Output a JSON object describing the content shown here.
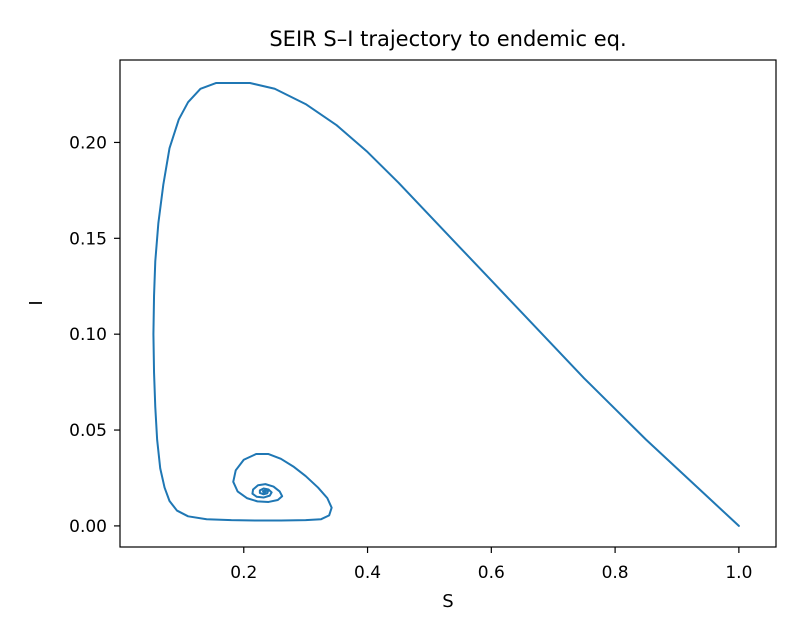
{
  "chart_data": {
    "type": "line",
    "title": "SEIR S–I trajectory to endemic eq.",
    "xlabel": "S",
    "ylabel": "I",
    "xlim": [
      0.0,
      1.06
    ],
    "ylim": [
      -0.011,
      0.243
    ],
    "grid": false,
    "legend": "none",
    "x_ticks": [
      {
        "value": 0.2,
        "label": "0.2"
      },
      {
        "value": 0.4,
        "label": "0.4"
      },
      {
        "value": 0.6,
        "label": "0.6"
      },
      {
        "value": 0.8,
        "label": "0.8"
      },
      {
        "value": 1.0,
        "label": "1.0"
      }
    ],
    "y_ticks": [
      {
        "value": 0.0,
        "label": "0.00"
      },
      {
        "value": 0.05,
        "label": "0.05"
      },
      {
        "value": 0.1,
        "label": "0.10"
      },
      {
        "value": 0.15,
        "label": "0.15"
      },
      {
        "value": 0.2,
        "label": "0.20"
      }
    ],
    "series": [
      {
        "color": "#1f77b4",
        "points": [
          [
            1.0,
            0.0
          ],
          [
            0.95,
            0.015
          ],
          [
            0.9,
            0.03
          ],
          [
            0.85,
            0.045
          ],
          [
            0.8,
            0.061
          ],
          [
            0.75,
            0.077
          ],
          [
            0.7,
            0.094
          ],
          [
            0.65,
            0.111
          ],
          [
            0.6,
            0.128
          ],
          [
            0.55,
            0.145
          ],
          [
            0.5,
            0.162
          ],
          [
            0.45,
            0.179
          ],
          [
            0.4,
            0.195
          ],
          [
            0.35,
            0.209
          ],
          [
            0.3,
            0.22
          ],
          [
            0.25,
            0.228
          ],
          [
            0.21,
            0.231
          ],
          [
            0.175,
            0.231
          ],
          [
            0.155,
            0.231
          ],
          [
            0.13,
            0.228
          ],
          [
            0.11,
            0.221
          ],
          [
            0.095,
            0.212
          ],
          [
            0.08,
            0.197
          ],
          [
            0.07,
            0.178
          ],
          [
            0.062,
            0.158
          ],
          [
            0.057,
            0.138
          ],
          [
            0.055,
            0.12
          ],
          [
            0.054,
            0.1
          ],
          [
            0.055,
            0.08
          ],
          [
            0.057,
            0.062
          ],
          [
            0.06,
            0.045
          ],
          [
            0.065,
            0.03
          ],
          [
            0.072,
            0.02
          ],
          [
            0.08,
            0.013
          ],
          [
            0.092,
            0.008
          ],
          [
            0.11,
            0.005
          ],
          [
            0.14,
            0.0035
          ],
          [
            0.18,
            0.003
          ],
          [
            0.22,
            0.0028
          ],
          [
            0.26,
            0.0028
          ],
          [
            0.3,
            0.003
          ],
          [
            0.325,
            0.0035
          ],
          [
            0.338,
            0.0055
          ],
          [
            0.342,
            0.0095
          ],
          [
            0.335,
            0.0145
          ],
          [
            0.32,
            0.02
          ],
          [
            0.3,
            0.026
          ],
          [
            0.28,
            0.031
          ],
          [
            0.26,
            0.035
          ],
          [
            0.24,
            0.0375
          ],
          [
            0.22,
            0.0375
          ],
          [
            0.2,
            0.0345
          ],
          [
            0.187,
            0.029
          ],
          [
            0.183,
            0.023
          ],
          [
            0.19,
            0.018
          ],
          [
            0.205,
            0.0145
          ],
          [
            0.222,
            0.0128
          ],
          [
            0.24,
            0.0125
          ],
          [
            0.255,
            0.0135
          ],
          [
            0.262,
            0.0155
          ],
          [
            0.258,
            0.018
          ],
          [
            0.248,
            0.0205
          ],
          [
            0.235,
            0.0218
          ],
          [
            0.223,
            0.0212
          ],
          [
            0.215,
            0.019
          ],
          [
            0.214,
            0.0168
          ],
          [
            0.221,
            0.0152
          ],
          [
            0.232,
            0.0148
          ],
          [
            0.242,
            0.0158
          ],
          [
            0.245,
            0.0175
          ],
          [
            0.24,
            0.019
          ],
          [
            0.232,
            0.0195
          ],
          [
            0.226,
            0.0185
          ],
          [
            0.226,
            0.0172
          ],
          [
            0.232,
            0.0165
          ],
          [
            0.238,
            0.017
          ],
          [
            0.239,
            0.018
          ],
          [
            0.235,
            0.0186
          ],
          [
            0.231,
            0.0181
          ],
          [
            0.232,
            0.0175
          ],
          [
            0.235,
            0.0176
          ]
        ]
      }
    ]
  }
}
